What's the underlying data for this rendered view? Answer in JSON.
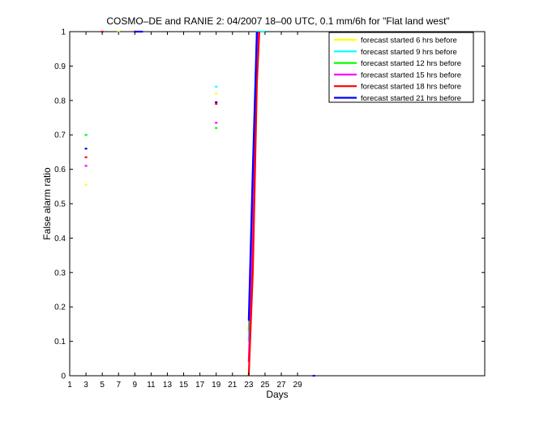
{
  "chart_data": {
    "type": "line",
    "title": "COSMO–DE and RANIE 2: 04/2007 18–00 UTC, 0.1 mm/6h for \"Flat land west\"",
    "xlabel": "Days",
    "ylabel": "False alarm ratio",
    "xlim": [
      1,
      52
    ],
    "ylim": [
      0,
      1
    ],
    "xticks": [
      1,
      3,
      5,
      7,
      9,
      11,
      13,
      15,
      17,
      19,
      21,
      23,
      25,
      27,
      29
    ],
    "yticks": [
      0,
      0.1,
      0.2,
      0.3,
      0.4,
      0.5,
      0.6,
      0.7,
      0.8,
      0.9,
      1
    ],
    "ytick_labels": [
      "0",
      "0.1",
      "0.2",
      "0.3",
      "0.4",
      "0.5",
      "0.6",
      "0.7",
      "0.8",
      "0.9",
      "1"
    ],
    "grid": false,
    "legend_position": "top-right",
    "series": [
      {
        "name": "forecast started 6 hrs before",
        "color": "#ffff00",
        "points": [
          [
            3,
            0.555
          ],
          [
            5,
            1
          ],
          [
            7,
            1
          ],
          [
            9,
            1
          ],
          [
            19,
            0.82
          ],
          [
            23,
            0.12
          ],
          [
            23.5,
            0.5
          ],
          [
            24,
            1
          ],
          [
            25,
            1
          ]
        ]
      },
      {
        "name": "forecast started 9 hrs before",
        "color": "#00ffff",
        "points": [
          [
            3,
            0.7
          ],
          [
            5,
            1
          ],
          [
            9,
            1
          ],
          [
            19,
            0.84
          ],
          [
            23,
            0.1
          ],
          [
            23.5,
            0.55
          ],
          [
            24,
            1
          ],
          [
            25,
            1
          ]
        ]
      },
      {
        "name": "forecast started 12 hrs before",
        "color": "#00ff00",
        "points": [
          [
            3,
            0.7
          ],
          [
            9,
            1
          ],
          [
            19,
            0.72
          ],
          [
            23,
            0.13
          ],
          [
            23.5,
            0.45
          ],
          [
            24,
            1
          ]
        ]
      },
      {
        "name": "forecast started 15 hrs before",
        "color": "#ff00ff",
        "points": [
          [
            3,
            0.61
          ],
          [
            5,
            1
          ],
          [
            9,
            1
          ],
          [
            19,
            0.735
          ],
          [
            23,
            0.04
          ],
          [
            23.5,
            0.4
          ],
          [
            24,
            0.95
          ],
          [
            24.2,
            1
          ]
        ]
      },
      {
        "name": "forecast started 18 hrs before",
        "color": "#ff0000",
        "points": [
          [
            3,
            0.635
          ],
          [
            5,
            1
          ],
          [
            9,
            1
          ],
          [
            19,
            0.79
          ],
          [
            23,
            0
          ],
          [
            23.5,
            0.3
          ],
          [
            24,
            0.85
          ],
          [
            24.3,
            1
          ]
        ]
      },
      {
        "name": "forecast started 21 hrs before",
        "color": "#0000ff",
        "points": [
          [
            3,
            0.66
          ],
          [
            9,
            1
          ],
          [
            10,
            1
          ],
          [
            19,
            0.795
          ],
          [
            23,
            0.16
          ],
          [
            23.5,
            0.6
          ],
          [
            24,
            1
          ],
          [
            31,
            0
          ]
        ]
      }
    ]
  }
}
